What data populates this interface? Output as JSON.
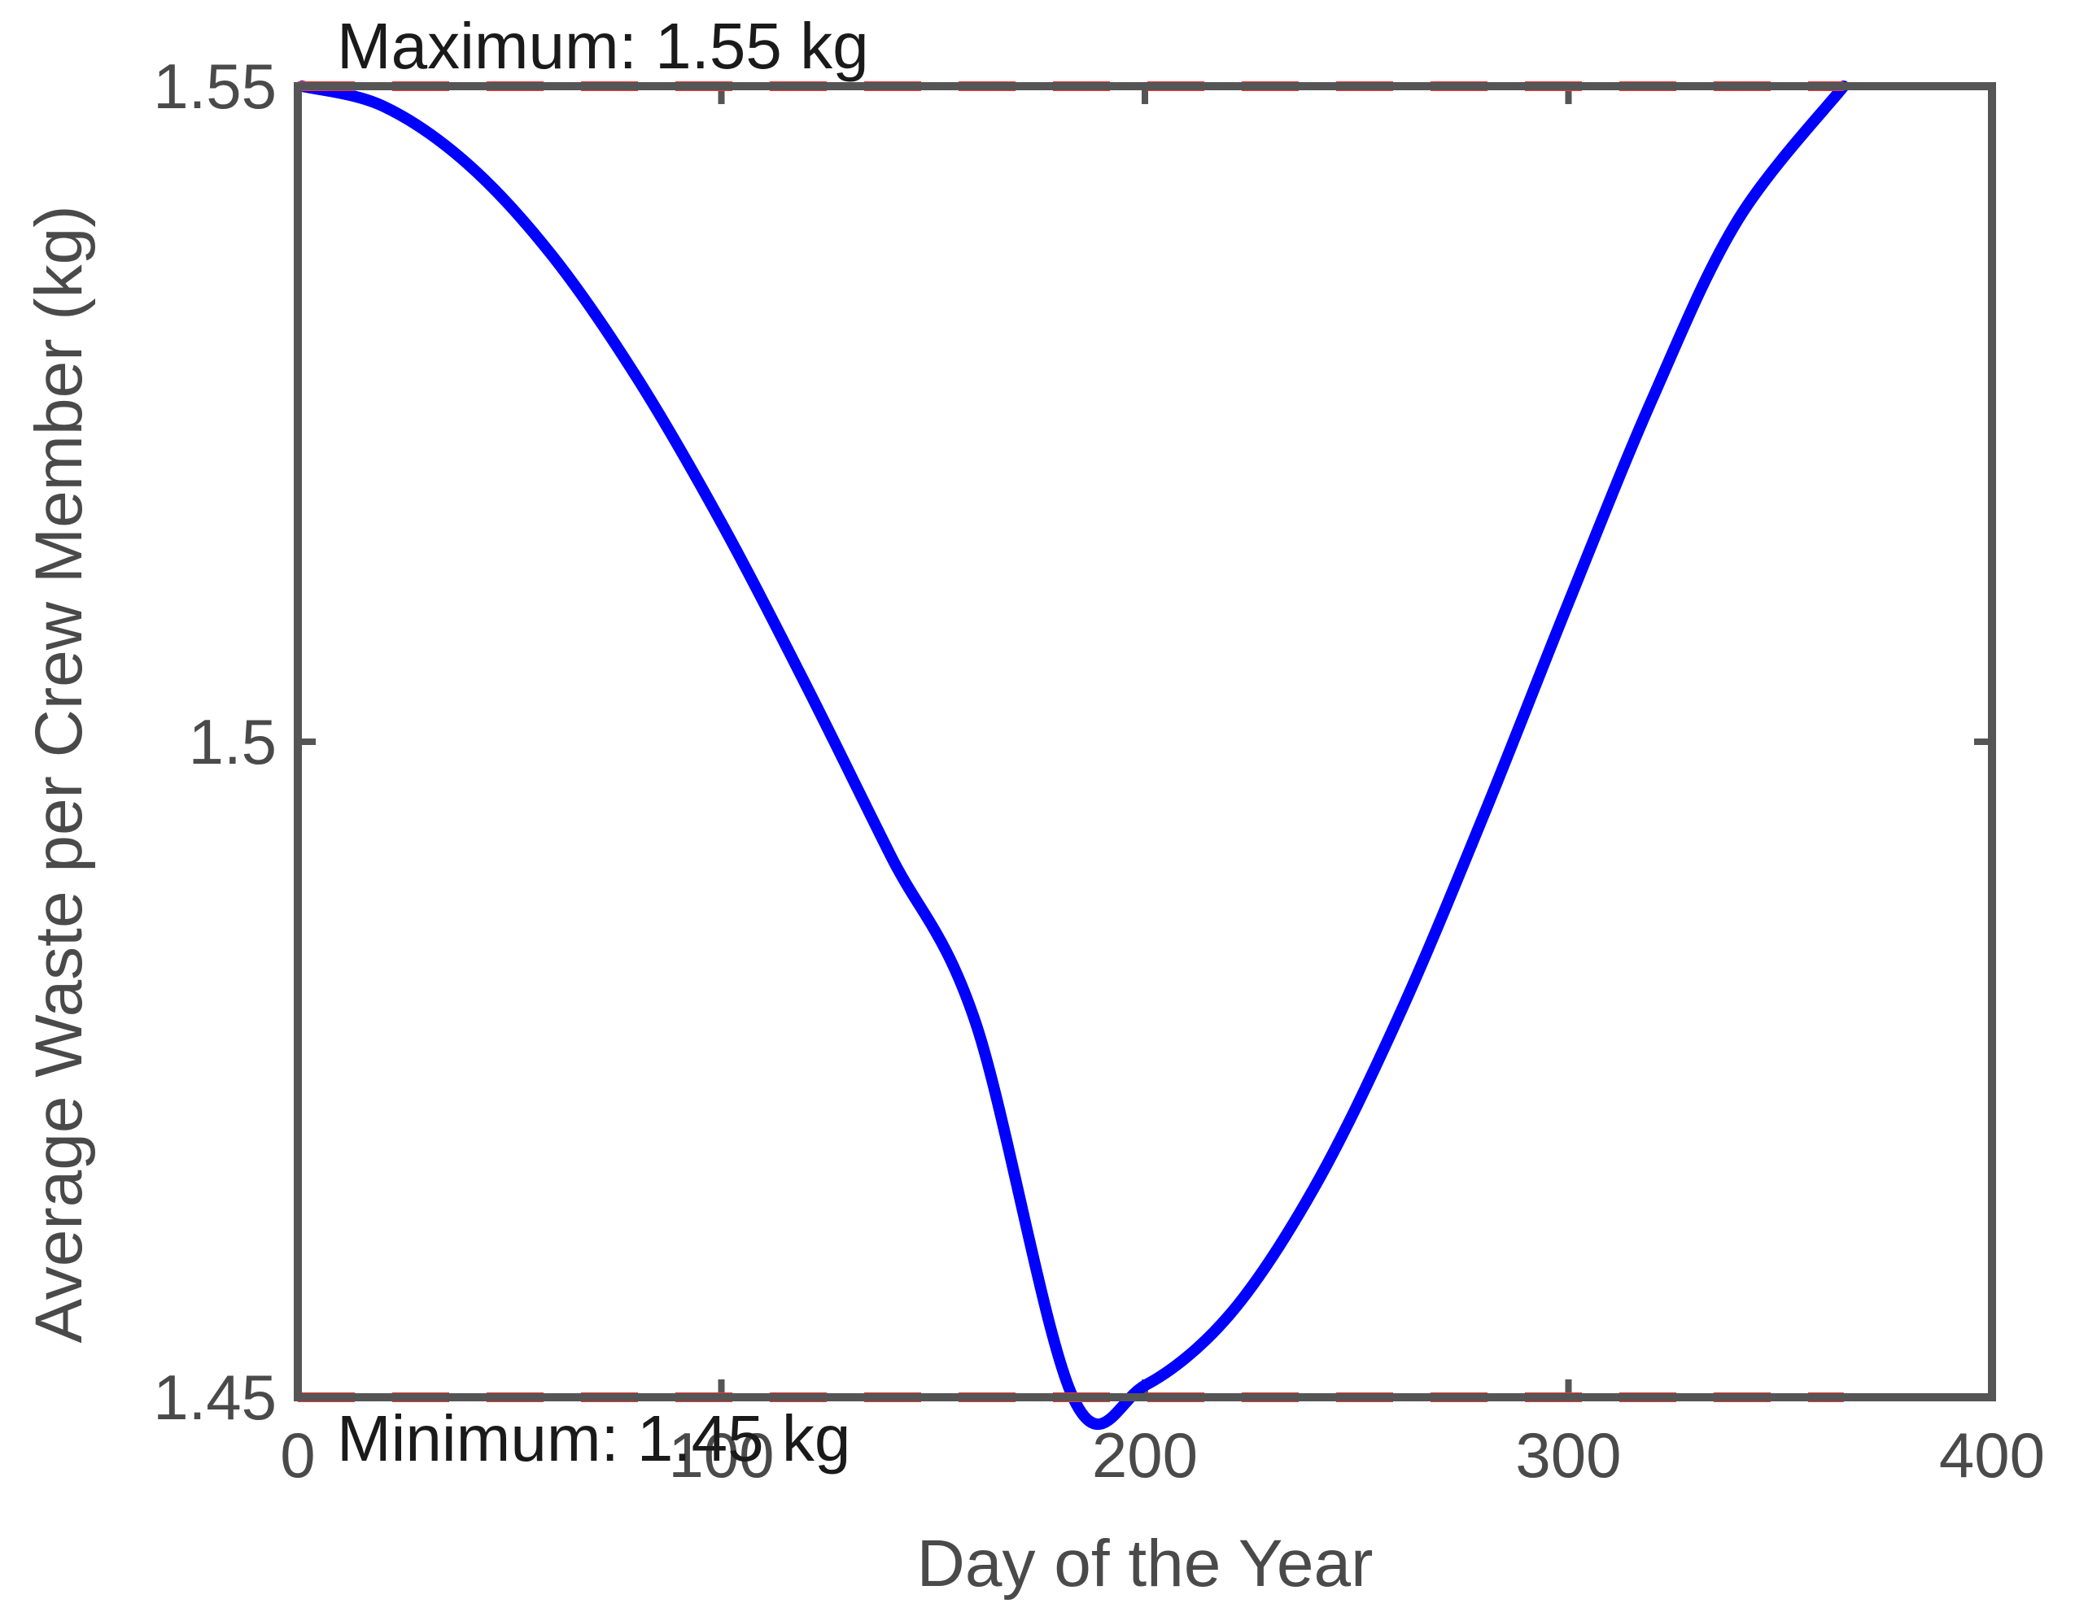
{
  "chart_data": {
    "type": "line",
    "xlabel": "Day of the Year",
    "ylabel": "Average Waste per Crew Member (kg)",
    "xlim": [
      0,
      400
    ],
    "ylim": [
      1.45,
      1.55
    ],
    "xticks": [
      "0",
      "100",
      "200",
      "300",
      "400"
    ],
    "yticks": [
      "1.45",
      "1.5",
      "1.55"
    ],
    "grid": false,
    "series": [
      {
        "color": "#0000ff",
        "x": [
          1,
          20,
          40,
          60,
          80,
          100,
          120,
          140,
          160,
          183,
          200,
          220,
          240,
          260,
          280,
          300,
          320,
          340,
          365
        ],
        "y": [
          1.55,
          1.5485,
          1.5441,
          1.5371,
          1.5278,
          1.5167,
          1.5043,
          1.4913,
          1.4786,
          1.45,
          1.4509,
          1.4563,
          1.466,
          1.4791,
          1.4944,
          1.5106,
          1.5263,
          1.5398,
          1.55
        ]
      }
    ],
    "reference_lines": [
      {
        "y": 1.55,
        "color": "#ff3333",
        "style": "dashed",
        "label": "Maximum: 1.55 kg"
      },
      {
        "y": 1.45,
        "color": "#ff3333",
        "style": "dashed",
        "label": "Minimum: 1.45 kg"
      }
    ]
  }
}
